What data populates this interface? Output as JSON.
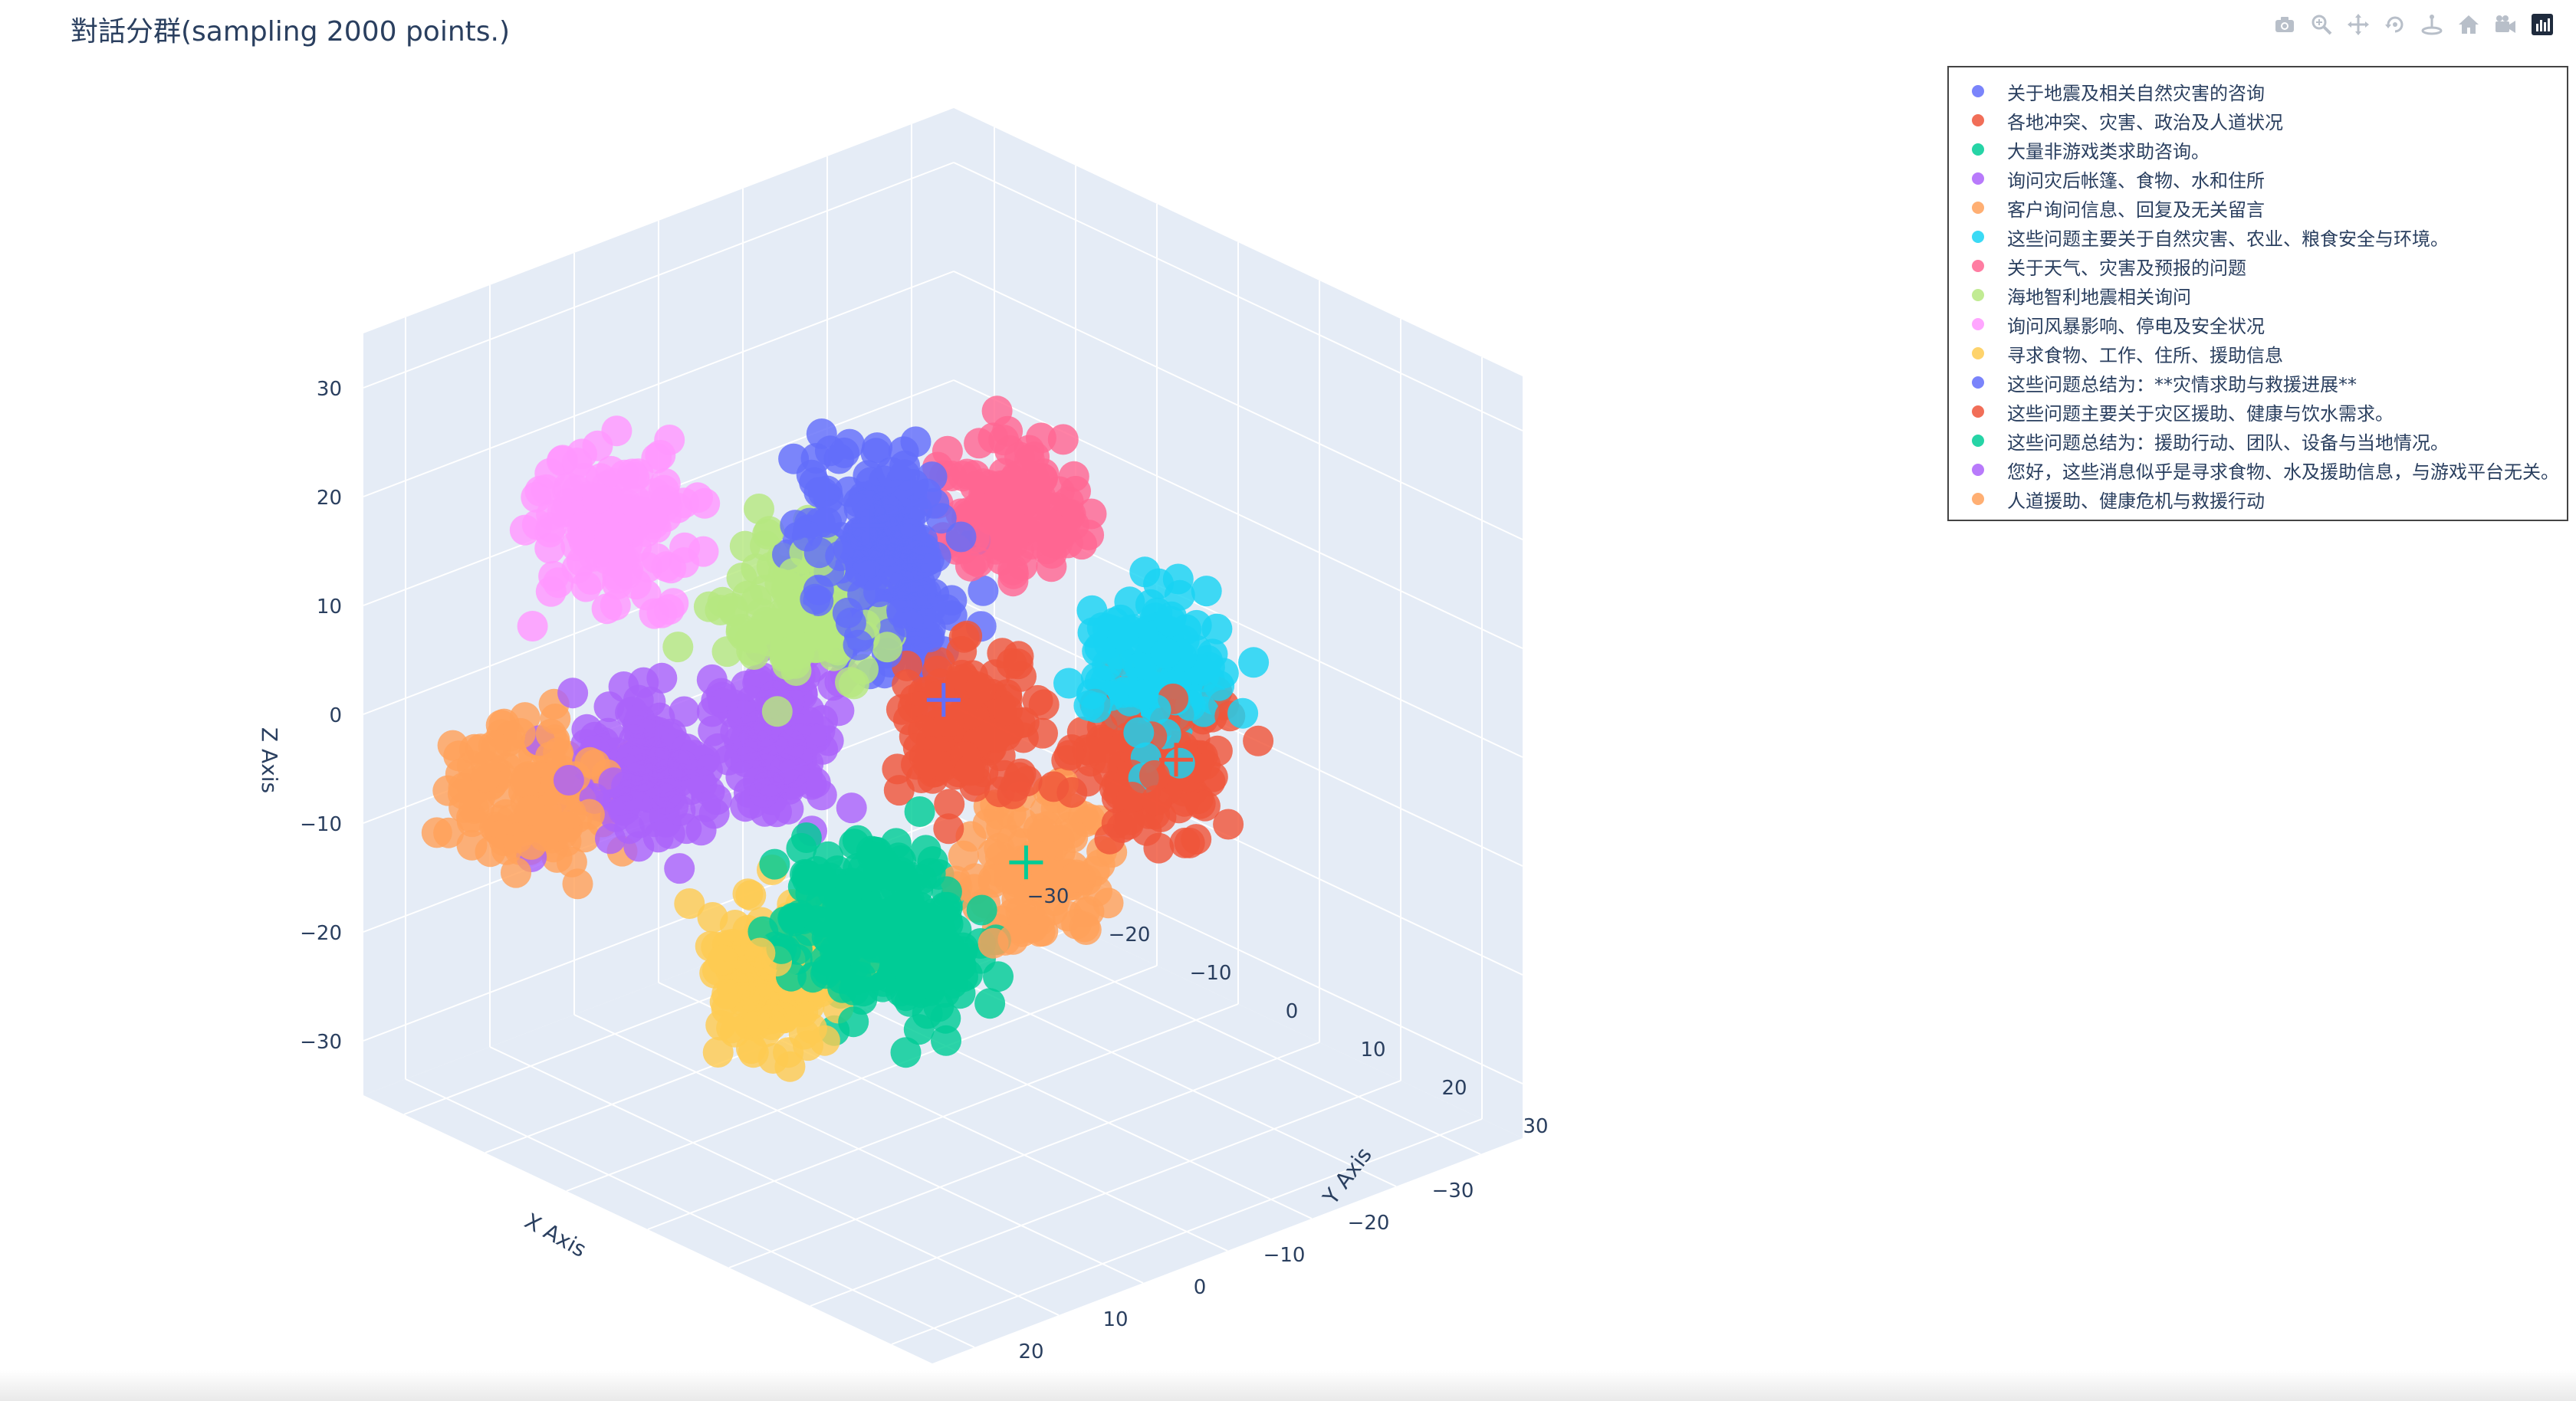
{
  "title": "對話分群(sampling 2000 points.)",
  "modebar": [
    {
      "name": "camera-icon",
      "tooltip": "Download plot as a png"
    },
    {
      "name": "zoom-icon",
      "tooltip": "Zoom"
    },
    {
      "name": "pan-icon",
      "tooltip": "Pan"
    },
    {
      "name": "orbit-rotation-icon",
      "tooltip": "Orbital rotation"
    },
    {
      "name": "turntable-rotation-icon",
      "tooltip": "Turntable rotation"
    },
    {
      "name": "reset-camera-icon",
      "tooltip": "Reset camera to default"
    },
    {
      "name": "camera-last-save-icon",
      "tooltip": "Reset camera to last save"
    },
    {
      "name": "plotly-logo-icon",
      "tooltip": "Produced with Plotly"
    }
  ],
  "chart_data": {
    "type": "scatter3d",
    "title": "對話分群(sampling 2000 points.)",
    "sampled_points": 2000,
    "xlabel": "X Axis",
    "ylabel": "Y Axis",
    "zlabel": "Z Axis",
    "xlim": [
      -35,
      35
    ],
    "ylim": [
      -35,
      35
    ],
    "zlim": [
      -35,
      35
    ],
    "x_ticks": [
      "30",
      "20",
      "10",
      "0",
      "−10",
      "−20",
      "−30"
    ],
    "y_ticks": [
      "−30",
      "−20",
      "−10",
      "0",
      "10",
      "20",
      "30"
    ],
    "z_ticks": [
      "30",
      "20",
      "10",
      "0",
      "−10",
      "−20",
      "−30"
    ],
    "grid": true,
    "legend_position": "top-right",
    "series": [
      {
        "name": "关于地震及相关自然灾害的咨询",
        "color": "#636efa",
        "center": [
          6,
          -3,
          20
        ]
      },
      {
        "name": "各地冲突、灾害、政治及人道状况",
        "color": "#EF553B",
        "center": [
          0,
          3,
          2
        ]
      },
      {
        "name": "大量非游戏类求助咨询。",
        "color": "#00cc96",
        "center": [
          12,
          1,
          -12
        ]
      },
      {
        "name": "询问灾后帐篷、食物、水和住所",
        "color": "#ab63fa",
        "center": [
          20,
          -17,
          -3
        ]
      },
      {
        "name": "客户询问信息、回复及无关留言",
        "color": "#FFA15A",
        "center": [
          27,
          -24,
          -6
        ]
      },
      {
        "name": "这些问题主要关于自然灾害、农业、粮食安全与环境。",
        "color": "#19d3f3",
        "center": [
          -17,
          8,
          4
        ]
      },
      {
        "name": "关于天气、灾害及预报的问题",
        "color": "#FF6692",
        "center": [
          -10,
          -2,
          17
        ]
      },
      {
        "name": "海地智利地震相关询问",
        "color": "#B6E880",
        "center": [
          10,
          -8,
          12
        ]
      },
      {
        "name": "询问风暴影响、停电及安全状况",
        "color": "#FF97FF",
        "center": [
          18,
          -22,
          17
        ]
      },
      {
        "name": "寻求食物、工作、住所、援助信息",
        "color": "#FECB52",
        "center": [
          15,
          -6,
          -20
        ]
      },
      {
        "name": "这些问题总结为：**灾情求助与救援进展**",
        "color": "#636efa",
        "center": [
          0,
          -6,
          10
        ]
      },
      {
        "name": "这些问题主要关于灾区援助、健康与饮水需求。",
        "color": "#EF553B",
        "center": [
          -16,
          9,
          -4
        ]
      },
      {
        "name": "这些问题总结为：援助行动、团队、设备与当地情况。",
        "color": "#00cc96",
        "center": [
          4,
          0,
          -18
        ]
      },
      {
        "name": "您好，这些消息似乎是寻求食物、水及援助信息，与游戏平台无关。",
        "color": "#ab63fa",
        "center": [
          8,
          -12,
          -2
        ]
      },
      {
        "name": "人道援助、健康危机与救援行动",
        "color": "#FFA15A",
        "center": [
          -8,
          3,
          -14
        ]
      }
    ],
    "centroid_markers": [
      {
        "color": "#636efa",
        "center": [
          6,
          -3,
          20
        ]
      },
      {
        "color": "#636efa",
        "center": [
          -2,
          -2,
          2
        ]
      },
      {
        "color": "#EF553B",
        "center": [
          -18,
          10,
          -4
        ]
      },
      {
        "color": "#00cc96",
        "center": [
          12,
          2,
          -14
        ]
      },
      {
        "color": "#00cc96",
        "center": [
          -6,
          4,
          -12
        ]
      },
      {
        "color": "#00cc96",
        "center": [
          8,
          -2,
          -14
        ]
      },
      {
        "color": "#ab63fa",
        "center": [
          20,
          -10,
          -2
        ]
      }
    ]
  }
}
